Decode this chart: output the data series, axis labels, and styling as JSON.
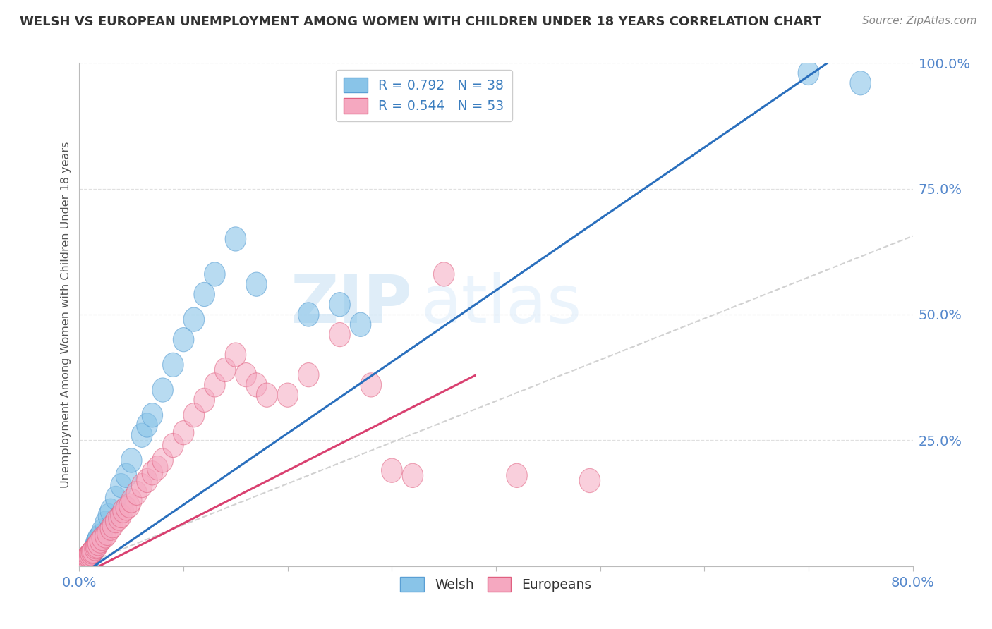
{
  "title": "WELSH VS EUROPEAN UNEMPLOYMENT AMONG WOMEN WITH CHILDREN UNDER 18 YEARS CORRELATION CHART",
  "source": "Source: ZipAtlas.com",
  "ylabel": "Unemployment Among Women with Children Under 18 years",
  "watermark_zip": "ZIP",
  "watermark_atlas": "atlas",
  "welsh_color": "#89c4e8",
  "welsh_edge_color": "#5a9fd4",
  "european_color": "#f5a8c0",
  "european_edge_color": "#e06080",
  "welsh_line_color": "#2a6fbd",
  "european_line_color": "#d94070",
  "ref_line_color": "#cccccc",
  "grid_color": "#dddddd",
  "title_color": "#333333",
  "source_color": "#888888",
  "tick_color": "#5588cc",
  "ylabel_color": "#555555",
  "legend_label_color": "#3a7dbf",
  "xlim": [
    0.0,
    0.8
  ],
  "ylim": [
    0.0,
    1.0
  ],
  "blue_slope": 1.42,
  "blue_intercept": -0.02,
  "pink_slope": 1.05,
  "pink_intercept": -0.02,
  "ref_slope": 0.82,
  "ref_intercept": 0.0,
  "welsh_x": [
    0.005,
    0.006,
    0.007,
    0.008,
    0.009,
    0.01,
    0.011,
    0.012,
    0.013,
    0.015,
    0.016,
    0.017,
    0.018,
    0.02,
    0.022,
    0.025,
    0.028,
    0.03,
    0.035,
    0.04,
    0.045,
    0.05,
    0.06,
    0.065,
    0.07,
    0.08,
    0.09,
    0.1,
    0.11,
    0.12,
    0.13,
    0.15,
    0.17,
    0.22,
    0.25,
    0.27,
    0.7,
    0.75
  ],
  "welsh_y": [
    0.005,
    0.008,
    0.01,
    0.012,
    0.015,
    0.018,
    0.02,
    0.025,
    0.03,
    0.038,
    0.045,
    0.05,
    0.055,
    0.06,
    0.07,
    0.085,
    0.1,
    0.11,
    0.135,
    0.16,
    0.18,
    0.21,
    0.26,
    0.28,
    0.3,
    0.35,
    0.4,
    0.45,
    0.49,
    0.54,
    0.58,
    0.65,
    0.56,
    0.5,
    0.52,
    0.48,
    0.98,
    0.96
  ],
  "european_x": [
    0.003,
    0.004,
    0.005,
    0.006,
    0.007,
    0.008,
    0.009,
    0.01,
    0.011,
    0.012,
    0.013,
    0.015,
    0.016,
    0.017,
    0.018,
    0.02,
    0.022,
    0.025,
    0.027,
    0.03,
    0.032,
    0.035,
    0.038,
    0.04,
    0.042,
    0.045,
    0.048,
    0.05,
    0.055,
    0.06,
    0.065,
    0.07,
    0.075,
    0.08,
    0.09,
    0.1,
    0.11,
    0.12,
    0.13,
    0.14,
    0.15,
    0.16,
    0.17,
    0.18,
    0.2,
    0.22,
    0.25,
    0.28,
    0.3,
    0.32,
    0.35,
    0.42,
    0.49
  ],
  "european_y": [
    0.005,
    0.008,
    0.01,
    0.012,
    0.015,
    0.018,
    0.02,
    0.022,
    0.025,
    0.028,
    0.03,
    0.035,
    0.038,
    0.04,
    0.045,
    0.05,
    0.055,
    0.06,
    0.065,
    0.075,
    0.08,
    0.09,
    0.095,
    0.1,
    0.11,
    0.115,
    0.12,
    0.13,
    0.145,
    0.16,
    0.17,
    0.185,
    0.195,
    0.21,
    0.24,
    0.265,
    0.3,
    0.33,
    0.36,
    0.39,
    0.42,
    0.38,
    0.36,
    0.34,
    0.34,
    0.38,
    0.46,
    0.36,
    0.19,
    0.18,
    0.58,
    0.18,
    0.17
  ]
}
